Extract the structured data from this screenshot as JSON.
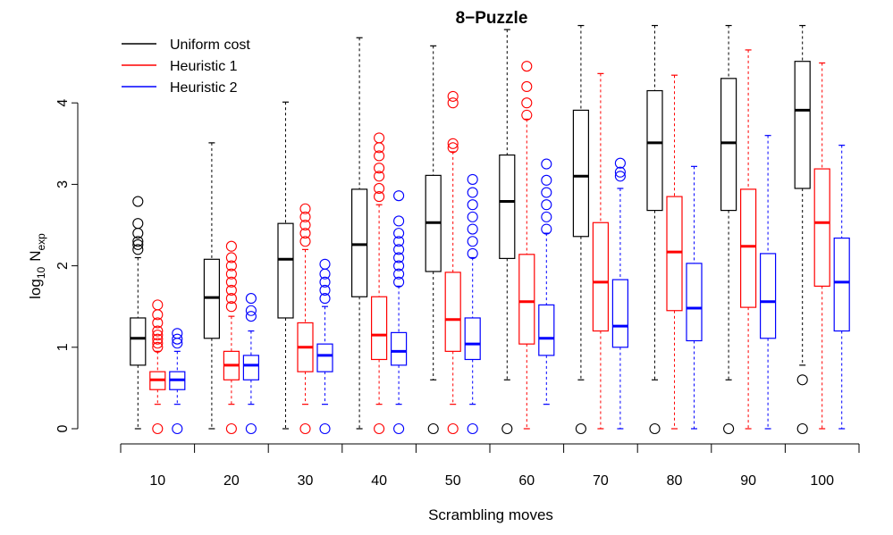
{
  "chart_data": {
    "type": "box",
    "title": "8−Puzzle",
    "xlabel": "Scrambling moves",
    "ylabel_main": "log",
    "ylabel_sub": "10",
    "ylabel_var": "N",
    "ylabel_var_sub": "exp",
    "categories": [
      "10",
      "20",
      "30",
      "40",
      "50",
      "60",
      "70",
      "80",
      "90",
      "100"
    ],
    "ylim": [
      0,
      4.75
    ],
    "yticks": [
      "0",
      "1",
      "2",
      "3",
      "4"
    ],
    "grid": false,
    "legend_position": "top-left",
    "series": [
      {
        "name": "Uniform cost",
        "color": "#000000",
        "boxes": [
          {
            "min": 0,
            "q1": 0.78,
            "median": 1.11,
            "q3": 1.36,
            "max": 2.1,
            "outliers": [
              2.2,
              2.26,
              2.3,
              2.4,
              2.52,
              2.79
            ]
          },
          {
            "min": 0,
            "q1": 1.11,
            "median": 1.61,
            "q3": 2.08,
            "max": 3.51,
            "outliers": []
          },
          {
            "min": 0,
            "q1": 1.36,
            "median": 2.08,
            "q3": 2.52,
            "max": 4.01,
            "outliers": []
          },
          {
            "min": 0,
            "q1": 1.62,
            "median": 2.26,
            "q3": 2.94,
            "max": 4.8,
            "outliers": []
          },
          {
            "min": 0.6,
            "q1": 1.93,
            "median": 2.53,
            "q3": 3.11,
            "max": 4.7,
            "outliers": [
              0
            ]
          },
          {
            "min": 0.6,
            "q1": 2.09,
            "median": 2.79,
            "q3": 3.36,
            "max": 4.9,
            "outliers": [
              0
            ]
          },
          {
            "min": 0.6,
            "q1": 2.36,
            "median": 3.1,
            "q3": 3.91,
            "max": 4.95,
            "outliers": [
              0
            ]
          },
          {
            "min": 0.6,
            "q1": 2.68,
            "median": 3.51,
            "q3": 4.15,
            "max": 4.95,
            "outliers": [
              0
            ]
          },
          {
            "min": 0.6,
            "q1": 2.68,
            "median": 3.51,
            "q3": 4.3,
            "max": 4.95,
            "outliers": [
              0
            ]
          },
          {
            "min": 0.78,
            "q1": 2.95,
            "median": 3.91,
            "q3": 4.51,
            "max": 4.95,
            "outliers": [
              0.6,
              0
            ]
          }
        ]
      },
      {
        "name": "Heuristic 1",
        "color": "#ff0000",
        "boxes": [
          {
            "min": 0.3,
            "q1": 0.48,
            "median": 0.6,
            "q3": 0.7,
            "max": 0.95,
            "outliers": [
              0,
              1.0,
              1.05,
              1.1,
              1.15,
              1.2,
              1.3,
              1.4,
              1.52
            ]
          },
          {
            "min": 0.3,
            "q1": 0.6,
            "median": 0.78,
            "q3": 0.95,
            "max": 1.38,
            "outliers": [
              0,
              1.5,
              1.6,
              1.7,
              1.8,
              1.9,
              2.0,
              2.1,
              2.24
            ]
          },
          {
            "min": 0.3,
            "q1": 0.7,
            "median": 1.0,
            "q3": 1.3,
            "max": 2.2,
            "outliers": [
              0,
              2.3,
              2.4,
              2.5,
              2.6,
              2.7
            ]
          },
          {
            "min": 0.3,
            "q1": 0.85,
            "median": 1.15,
            "q3": 1.62,
            "max": 2.75,
            "outliers": [
              0,
              2.85,
              2.95,
              3.1,
              3.2,
              3.35,
              3.45,
              3.57
            ]
          },
          {
            "min": 0.3,
            "q1": 0.95,
            "median": 1.34,
            "q3": 1.92,
            "max": 3.4,
            "outliers": [
              0,
              3.45,
              3.5,
              4.0,
              4.08
            ]
          },
          {
            "min": 0,
            "q1": 1.04,
            "median": 1.56,
            "q3": 2.14,
            "max": 3.8,
            "outliers": [
              3.85,
              4.0,
              4.2,
              4.45
            ]
          },
          {
            "min": 0,
            "q1": 1.2,
            "median": 1.8,
            "q3": 2.53,
            "max": 4.36,
            "outliers": []
          },
          {
            "min": 0,
            "q1": 1.45,
            "median": 2.17,
            "q3": 2.85,
            "max": 4.34,
            "outliers": []
          },
          {
            "min": 0,
            "q1": 1.49,
            "median": 2.24,
            "q3": 2.94,
            "max": 4.65,
            "outliers": []
          },
          {
            "min": 0,
            "q1": 1.75,
            "median": 2.53,
            "q3": 3.19,
            "max": 4.49,
            "outliers": []
          }
        ]
      },
      {
        "name": "Heuristic 2",
        "color": "#0000ff",
        "boxes": [
          {
            "min": 0.3,
            "q1": 0.48,
            "median": 0.6,
            "q3": 0.7,
            "max": 0.95,
            "outliers": [
              0,
              1.05,
              1.1,
              1.17
            ]
          },
          {
            "min": 0.3,
            "q1": 0.6,
            "median": 0.78,
            "q3": 0.9,
            "max": 1.2,
            "outliers": [
              0,
              1.38,
              1.45,
              1.6
            ]
          },
          {
            "min": 0.3,
            "q1": 0.7,
            "median": 0.9,
            "q3": 1.04,
            "max": 1.5,
            "outliers": [
              0,
              1.6,
              1.7,
              1.8,
              1.9,
              2.02
            ]
          },
          {
            "min": 0.3,
            "q1": 0.78,
            "median": 0.95,
            "q3": 1.18,
            "max": 1.75,
            "outliers": [
              0,
              1.8,
              1.9,
              2.0,
              2.1,
              2.2,
              2.3,
              2.4,
              2.55,
              2.86
            ]
          },
          {
            "min": 0.3,
            "q1": 0.85,
            "median": 1.04,
            "q3": 1.36,
            "max": 2.1,
            "outliers": [
              0,
              2.15,
              2.3,
              2.45,
              2.6,
              2.75,
              2.9,
              3.06
            ]
          },
          {
            "min": 0.3,
            "q1": 0.9,
            "median": 1.11,
            "q3": 1.52,
            "max": 2.4,
            "outliers": [
              2.45,
              2.6,
              2.75,
              2.9,
              3.05,
              3.25
            ]
          },
          {
            "min": 0,
            "q1": 1.0,
            "median": 1.26,
            "q3": 1.83,
            "max": 2.95,
            "outliers": [
              3.1,
              3.15,
              3.26
            ]
          },
          {
            "min": 0,
            "q1": 1.08,
            "median": 1.48,
            "q3": 2.03,
            "max": 3.22,
            "outliers": []
          },
          {
            "min": 0,
            "q1": 1.11,
            "median": 1.56,
            "q3": 2.15,
            "max": 3.6,
            "outliers": []
          },
          {
            "min": 0,
            "q1": 1.2,
            "median": 1.8,
            "q3": 2.34,
            "max": 3.48,
            "outliers": []
          }
        ]
      }
    ]
  }
}
